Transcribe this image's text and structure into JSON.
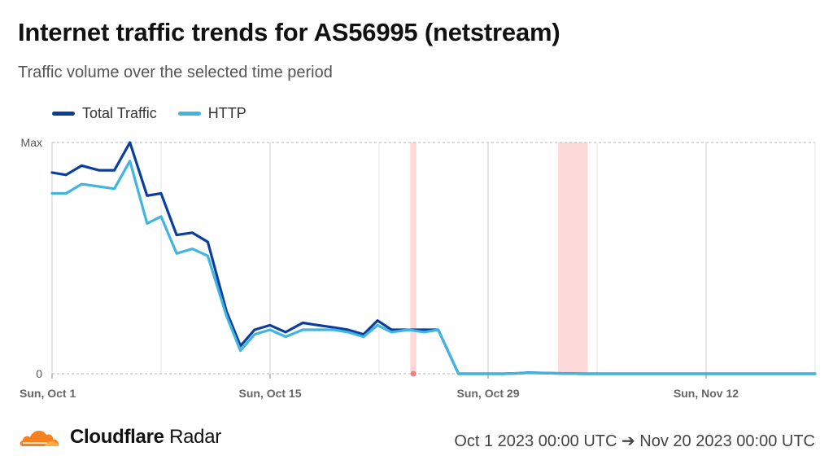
{
  "header": {
    "title": "Internet traffic trends for AS56995 (netstream)",
    "subtitle": "Traffic volume over the selected time period"
  },
  "legend": [
    {
      "label": "Total Traffic",
      "color": "#0a3d9e"
    },
    {
      "label": "HTTP",
      "color": "#3fb5df"
    }
  ],
  "footer": {
    "brand_bold": "Cloudflare",
    "brand_light": "Radar",
    "logo_icon": "cloudflare-cloud-icon",
    "range": "Oct 1 2023 00:00 UTC ➔ Nov 20 2023 00:00 UTC"
  },
  "chart_data": {
    "type": "line",
    "x_unit": "days since Oct 1 2023",
    "xlim": [
      0,
      49
    ],
    "ylim": [
      0,
      1
    ],
    "yticks": [
      {
        "value": 1,
        "label": "Max"
      },
      {
        "value": 0,
        "label": "0"
      }
    ],
    "xticks": [
      {
        "x": 0,
        "label": "Sun, Oct 1"
      },
      {
        "x": 14,
        "label": "Sun, Oct 15"
      },
      {
        "x": 28,
        "label": "Sun, Oct 29"
      },
      {
        "x": 42,
        "label": "Sun, Nov 12"
      }
    ],
    "minor_gridlines_x": [
      7,
      21,
      35
    ],
    "highlight_bands": [
      {
        "x0": 23.0,
        "x1": 23.4,
        "color": "#fdd9d9"
      },
      {
        "x0": 32.5,
        "x1": 34.4,
        "color": "#fdd9d9"
      }
    ],
    "event_markers": [
      {
        "x": 23.2,
        "color": "#f08080"
      }
    ],
    "series": [
      {
        "name": "Total Traffic",
        "color": "#0a3d9e",
        "x": [
          0,
          0.9,
          1.9,
          3.0,
          4.0,
          5.0,
          6.1,
          7.0,
          8.0,
          9.0,
          10.0,
          11.2,
          12.1,
          13.0,
          14.0,
          15.0,
          16.1,
          17.1,
          18.1,
          19.0,
          20.0,
          20.9,
          21.8,
          22.9,
          23.9,
          24.8,
          26.1,
          26.9,
          28.0,
          29.0,
          30.0,
          30.6,
          32.0,
          34.0,
          36.0,
          40.0,
          44.0,
          49.0
        ],
        "y": [
          0.87,
          0.86,
          0.9,
          0.88,
          0.88,
          1.0,
          0.77,
          0.78,
          0.6,
          0.61,
          0.57,
          0.27,
          0.12,
          0.19,
          0.21,
          0.18,
          0.22,
          0.21,
          0.2,
          0.19,
          0.17,
          0.23,
          0.19,
          0.19,
          0.19,
          0.19,
          0.0,
          0.0,
          0.0,
          0.0,
          0.002,
          0.005,
          0.002,
          0.0,
          0.0,
          0.0,
          0.0,
          0.0
        ]
      },
      {
        "name": "HTTP",
        "color": "#3fb5df",
        "x": [
          0,
          0.9,
          1.9,
          3.0,
          4.0,
          5.0,
          6.1,
          7.0,
          8.0,
          9.0,
          10.0,
          11.2,
          12.1,
          13.0,
          14.0,
          15.0,
          16.1,
          17.1,
          18.1,
          19.0,
          20.0,
          20.9,
          21.8,
          22.9,
          23.9,
          24.8,
          26.1,
          26.9,
          28.0,
          29.0,
          30.0,
          30.6,
          32.0,
          34.0,
          36.0,
          40.0,
          44.0,
          49.0
        ],
        "y": [
          0.78,
          0.78,
          0.82,
          0.81,
          0.8,
          0.92,
          0.65,
          0.68,
          0.52,
          0.54,
          0.51,
          0.25,
          0.1,
          0.17,
          0.19,
          0.16,
          0.19,
          0.19,
          0.19,
          0.18,
          0.16,
          0.21,
          0.18,
          0.19,
          0.18,
          0.19,
          0.0,
          0.0,
          0.0,
          0.0,
          0.002,
          0.004,
          0.002,
          0.0,
          0.0,
          0.0,
          0.0,
          0.0
        ]
      }
    ]
  }
}
